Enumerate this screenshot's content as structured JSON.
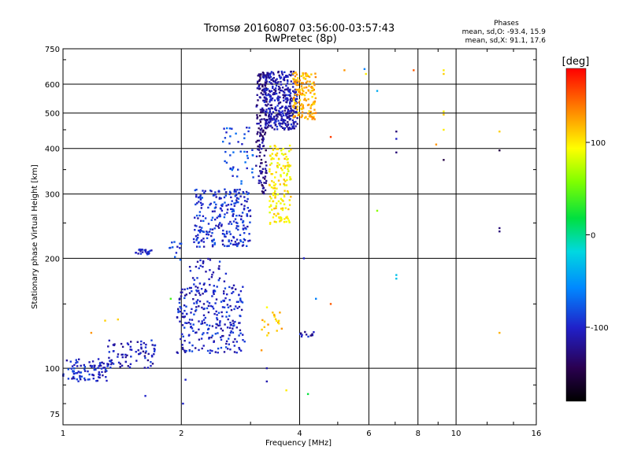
{
  "chart_data": {
    "type": "scatter",
    "title": "Tromsø 20160807 03:56:00-03:57:43",
    "subtitle": "RwPretec (8p)",
    "xlabel": "Frequency [MHz]",
    "ylabel": "Stationary phase Virtual Height [km]",
    "x_scale": "log",
    "y_scale": "log",
    "xlim": [
      1,
      16
    ],
    "ylim": [
      70,
      750
    ],
    "x_ticks": [
      1,
      2,
      4,
      6,
      8,
      10,
      16
    ],
    "y_ticks": [
      75,
      100,
      200,
      300,
      400,
      500,
      600,
      750
    ],
    "grid": true,
    "stats": {
      "header": "Phases",
      "line1": "mean, sd,O: -93.4, 15.9",
      "line2": "mean, sd,X:  91.1, 17.6"
    },
    "colorbar": {
      "label": "[deg]",
      "range": [
        -180,
        180
      ],
      "ticks": [
        "100",
        "0",
        "-100"
      ],
      "tick_values": [
        100,
        0,
        -100
      ]
    },
    "clusters": [
      {
        "x": [
          1.0,
          1.3
        ],
        "y": [
          92,
          106
        ],
        "n": 90,
        "phase": -100
      },
      {
        "x": [
          1.3,
          1.72
        ],
        "y": [
          100,
          120
        ],
        "n": 80,
        "phase": -105
      },
      {
        "x": [
          1.53,
          1.68
        ],
        "y": [
          205,
          212
        ],
        "n": 25,
        "phase": -100
      },
      {
        "x": [
          1.85,
          2.0
        ],
        "y": [
          198,
          222
        ],
        "n": 12,
        "phase": -95
      },
      {
        "x": [
          1.95,
          2.9
        ],
        "y": [
          110,
          170
        ],
        "n": 260,
        "phase": -100
      },
      {
        "x": [
          2.1,
          2.6
        ],
        "y": [
          160,
          200
        ],
        "n": 40,
        "phase": -105
      },
      {
        "x": [
          2.15,
          3.0
        ],
        "y": [
          215,
          310
        ],
        "n": 260,
        "phase": -95
      },
      {
        "x": [
          2.55,
          3.05
        ],
        "y": [
          320,
          460
        ],
        "n": 45,
        "phase": -85
      },
      {
        "x": [
          3.1,
          3.3
        ],
        "y": [
          300,
          650
        ],
        "n": 160,
        "phase": -125
      },
      {
        "x": [
          3.25,
          3.95
        ],
        "y": [
          450,
          650
        ],
        "n": 380,
        "phase": -110
      },
      {
        "x": [
          3.35,
          3.8
        ],
        "y": [
          248,
          410
        ],
        "n": 150,
        "phase": 100
      },
      {
        "x": [
          3.85,
          4.4
        ],
        "y": [
          480,
          650
        ],
        "n": 150,
        "phase": 120
      },
      {
        "x": [
          3.2,
          3.7
        ],
        "y": [
          122,
          148
        ],
        "n": 20,
        "phase": 110
      },
      {
        "x": [
          4.0,
          4.35
        ],
        "y": [
          122,
          126
        ],
        "n": 12,
        "phase": -110
      }
    ],
    "scatter_points": [
      {
        "x": 1.18,
        "y": 125,
        "phase": 130
      },
      {
        "x": 1.28,
        "y": 135,
        "phase": 110
      },
      {
        "x": 1.38,
        "y": 136,
        "phase": 110
      },
      {
        "x": 1.62,
        "y": 84,
        "phase": -100
      },
      {
        "x": 2.02,
        "y": 80,
        "phase": -100
      },
      {
        "x": 2.05,
        "y": 93,
        "phase": -100
      },
      {
        "x": 1.88,
        "y": 155,
        "phase": 40
      },
      {
        "x": 3.3,
        "y": 100,
        "phase": -110
      },
      {
        "x": 3.3,
        "y": 92,
        "phase": -110
      },
      {
        "x": 3.2,
        "y": 112,
        "phase": 130
      },
      {
        "x": 3.7,
        "y": 87,
        "phase": 100
      },
      {
        "x": 4.2,
        "y": 85,
        "phase": 20
      },
      {
        "x": 4.1,
        "y": 200,
        "phase": -100
      },
      {
        "x": 4.4,
        "y": 155,
        "phase": -60
      },
      {
        "x": 4.8,
        "y": 150,
        "phase": 150
      },
      {
        "x": 4.8,
        "y": 430,
        "phase": 160
      },
      {
        "x": 5.2,
        "y": 655,
        "phase": 130
      },
      {
        "x": 5.85,
        "y": 660,
        "phase": -60
      },
      {
        "x": 5.9,
        "y": 640,
        "phase": 100
      },
      {
        "x": 6.3,
        "y": 575,
        "phase": -40
      },
      {
        "x": 6.3,
        "y": 270,
        "phase": 60
      },
      {
        "x": 7.05,
        "y": 445,
        "phase": -130
      },
      {
        "x": 7.05,
        "y": 425,
        "phase": -100
      },
      {
        "x": 7.05,
        "y": 390,
        "phase": -130
      },
      {
        "x": 7.05,
        "y": 180,
        "phase": -30
      },
      {
        "x": 7.05,
        "y": 176,
        "phase": -30
      },
      {
        "x": 7.8,
        "y": 655,
        "phase": 150
      },
      {
        "x": 8.9,
        "y": 410,
        "phase": 130
      },
      {
        "x": 9.3,
        "y": 655,
        "phase": 100
      },
      {
        "x": 9.3,
        "y": 640,
        "phase": 110
      },
      {
        "x": 9.3,
        "y": 505,
        "phase": 100
      },
      {
        "x": 9.3,
        "y": 495,
        "phase": 110
      },
      {
        "x": 9.3,
        "y": 450,
        "phase": 100
      },
      {
        "x": 9.3,
        "y": 372,
        "phase": -150
      },
      {
        "x": 12.9,
        "y": 445,
        "phase": 110
      },
      {
        "x": 12.9,
        "y": 395,
        "phase": -150
      },
      {
        "x": 12.9,
        "y": 242,
        "phase": -130
      },
      {
        "x": 12.9,
        "y": 237,
        "phase": -130
      },
      {
        "x": 12.9,
        "y": 125,
        "phase": 120
      }
    ]
  }
}
